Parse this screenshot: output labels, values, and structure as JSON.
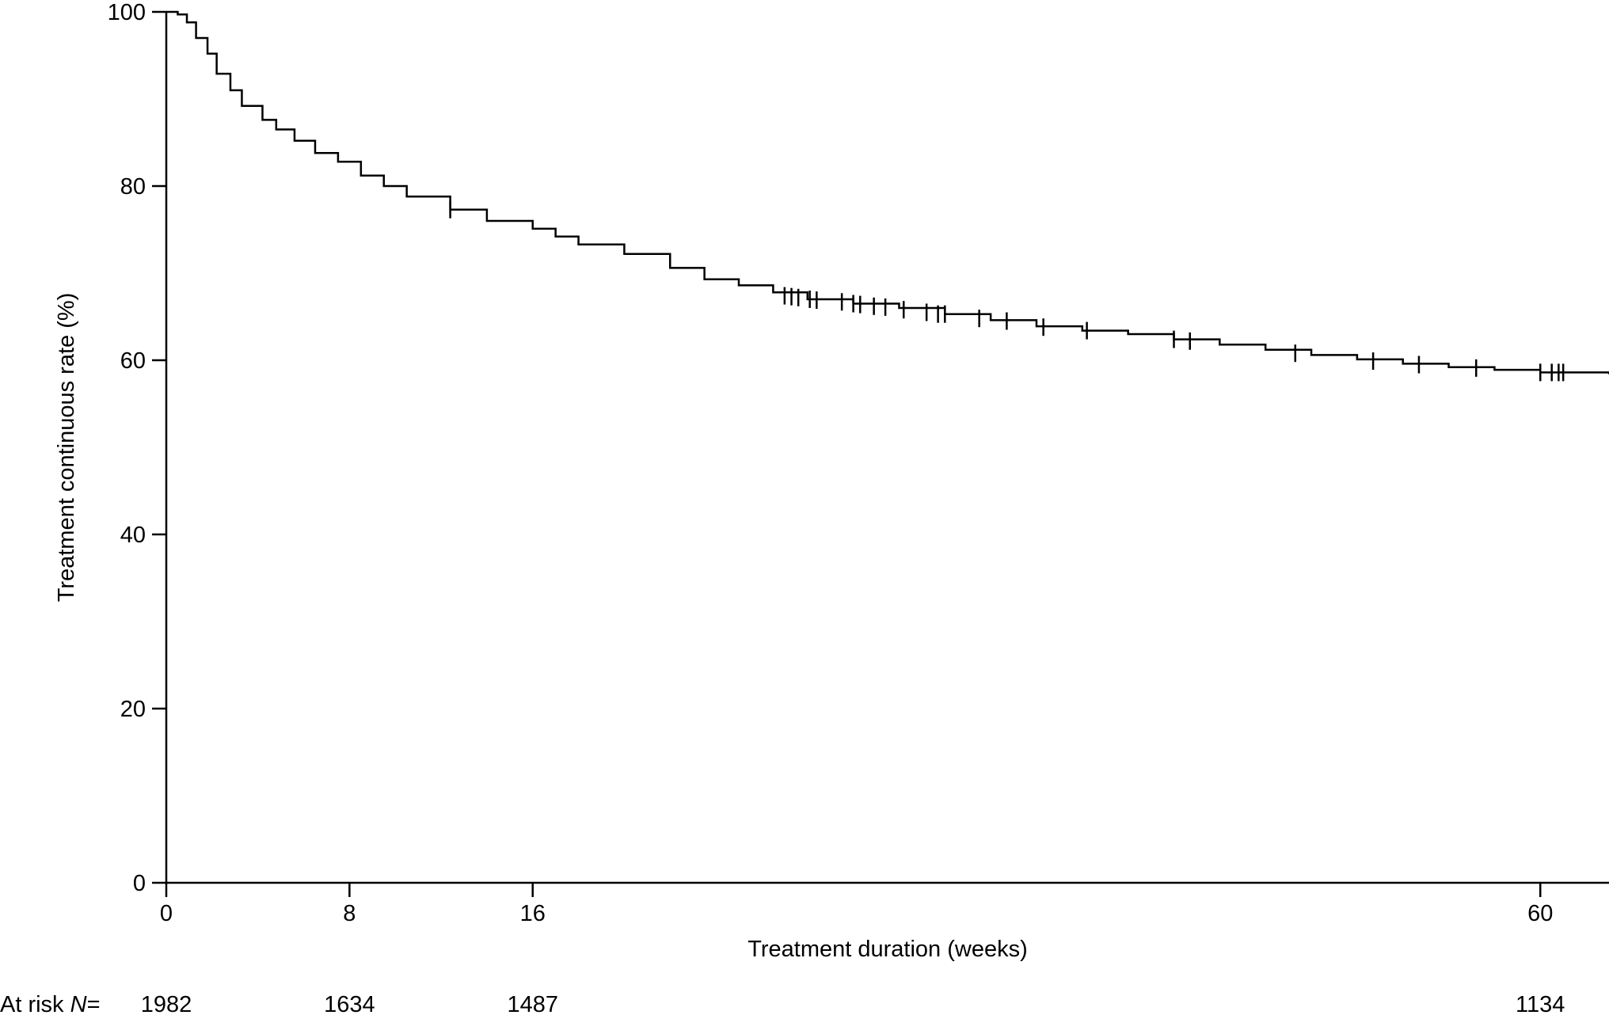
{
  "chart_data": {
    "type": "line",
    "title": "",
    "xlabel": "Treatment duration (weeks)",
    "ylabel": "Treatment continuous rate (%)",
    "xlim": [
      0,
      63
    ],
    "ylim": [
      0,
      100
    ],
    "x_ticks": [
      0,
      8,
      16,
      60
    ],
    "y_ticks": [
      0,
      20,
      40,
      60,
      80,
      100
    ],
    "grid": false,
    "legend": "none",
    "line_color": "#000000",
    "series": [
      {
        "step": true,
        "points": [
          {
            "x": 0,
            "y": 100
          },
          {
            "x": 0.5,
            "y": 99.7
          },
          {
            "x": 0.9,
            "y": 98.8
          },
          {
            "x": 1.3,
            "y": 97.0
          },
          {
            "x": 1.8,
            "y": 95.2
          },
          {
            "x": 2.2,
            "y": 92.9
          },
          {
            "x": 2.8,
            "y": 91.0
          },
          {
            "x": 3.3,
            "y": 89.2
          },
          {
            "x": 4.2,
            "y": 87.6
          },
          {
            "x": 4.8,
            "y": 86.5
          },
          {
            "x": 5.6,
            "y": 85.2
          },
          {
            "x": 6.5,
            "y": 83.8
          },
          {
            "x": 7.5,
            "y": 82.8
          },
          {
            "x": 8.5,
            "y": 81.2
          },
          {
            "x": 9.5,
            "y": 80.0
          },
          {
            "x": 10.5,
            "y": 78.8
          },
          {
            "x": 12.4,
            "y": 77.3
          },
          {
            "x": 14.0,
            "y": 76.0
          },
          {
            "x": 16.0,
            "y": 75.1
          },
          {
            "x": 17.0,
            "y": 74.2
          },
          {
            "x": 18.0,
            "y": 73.3
          },
          {
            "x": 20.0,
            "y": 72.2
          },
          {
            "x": 22.0,
            "y": 70.6
          },
          {
            "x": 23.5,
            "y": 69.3
          },
          {
            "x": 25.0,
            "y": 68.6
          },
          {
            "x": 26.5,
            "y": 67.8
          },
          {
            "x": 28.0,
            "y": 67.0
          },
          {
            "x": 30.0,
            "y": 66.5
          },
          {
            "x": 32.0,
            "y": 66.0
          },
          {
            "x": 34.0,
            "y": 65.3
          },
          {
            "x": 36.0,
            "y": 64.6
          },
          {
            "x": 38.0,
            "y": 63.9
          },
          {
            "x": 40.0,
            "y": 63.4
          },
          {
            "x": 42.0,
            "y": 63.0
          },
          {
            "x": 44.0,
            "y": 62.4
          },
          {
            "x": 46.0,
            "y": 61.8
          },
          {
            "x": 48.0,
            "y": 61.2
          },
          {
            "x": 50.0,
            "y": 60.6
          },
          {
            "x": 52.0,
            "y": 60.1
          },
          {
            "x": 54.0,
            "y": 59.6
          },
          {
            "x": 56.0,
            "y": 59.2
          },
          {
            "x": 58.0,
            "y": 58.9
          },
          {
            "x": 60.0,
            "y": 58.6
          },
          {
            "x": 63.0,
            "y": 58.4
          }
        ],
        "censored": [
          {
            "x": 12.4,
            "y": 77.3
          },
          {
            "x": 27.0,
            "y": 67.4
          },
          {
            "x": 27.3,
            "y": 67.3
          },
          {
            "x": 27.6,
            "y": 67.2
          },
          {
            "x": 28.1,
            "y": 67.0
          },
          {
            "x": 28.4,
            "y": 66.9
          },
          {
            "x": 29.5,
            "y": 66.7
          },
          {
            "x": 30.0,
            "y": 66.5
          },
          {
            "x": 30.3,
            "y": 66.4
          },
          {
            "x": 30.9,
            "y": 66.2
          },
          {
            "x": 31.4,
            "y": 66.1
          },
          {
            "x": 32.2,
            "y": 65.8
          },
          {
            "x": 33.2,
            "y": 65.5
          },
          {
            "x": 33.7,
            "y": 65.3
          },
          {
            "x": 34.0,
            "y": 65.3
          },
          {
            "x": 35.5,
            "y": 64.8
          },
          {
            "x": 36.7,
            "y": 64.5
          },
          {
            "x": 38.3,
            "y": 63.8
          },
          {
            "x": 40.2,
            "y": 63.4
          },
          {
            "x": 44.0,
            "y": 62.4
          },
          {
            "x": 44.7,
            "y": 62.2
          },
          {
            "x": 49.3,
            "y": 60.8
          },
          {
            "x": 52.7,
            "y": 59.9
          },
          {
            "x": 54.7,
            "y": 59.5
          },
          {
            "x": 57.2,
            "y": 59.1
          },
          {
            "x": 60.0,
            "y": 58.6
          },
          {
            "x": 60.5,
            "y": 58.6
          },
          {
            "x": 60.8,
            "y": 58.6
          },
          {
            "x": 61.0,
            "y": 58.6
          }
        ]
      }
    ],
    "at_risk": {
      "label_prefix": "At risk ",
      "label_var": "N",
      "label_suffix": "=",
      "entries": [
        {
          "x": 0,
          "n": "1982"
        },
        {
          "x": 8,
          "n": "1634"
        },
        {
          "x": 16,
          "n": "1487"
        },
        {
          "x": 60,
          "n": "1134"
        }
      ]
    }
  }
}
